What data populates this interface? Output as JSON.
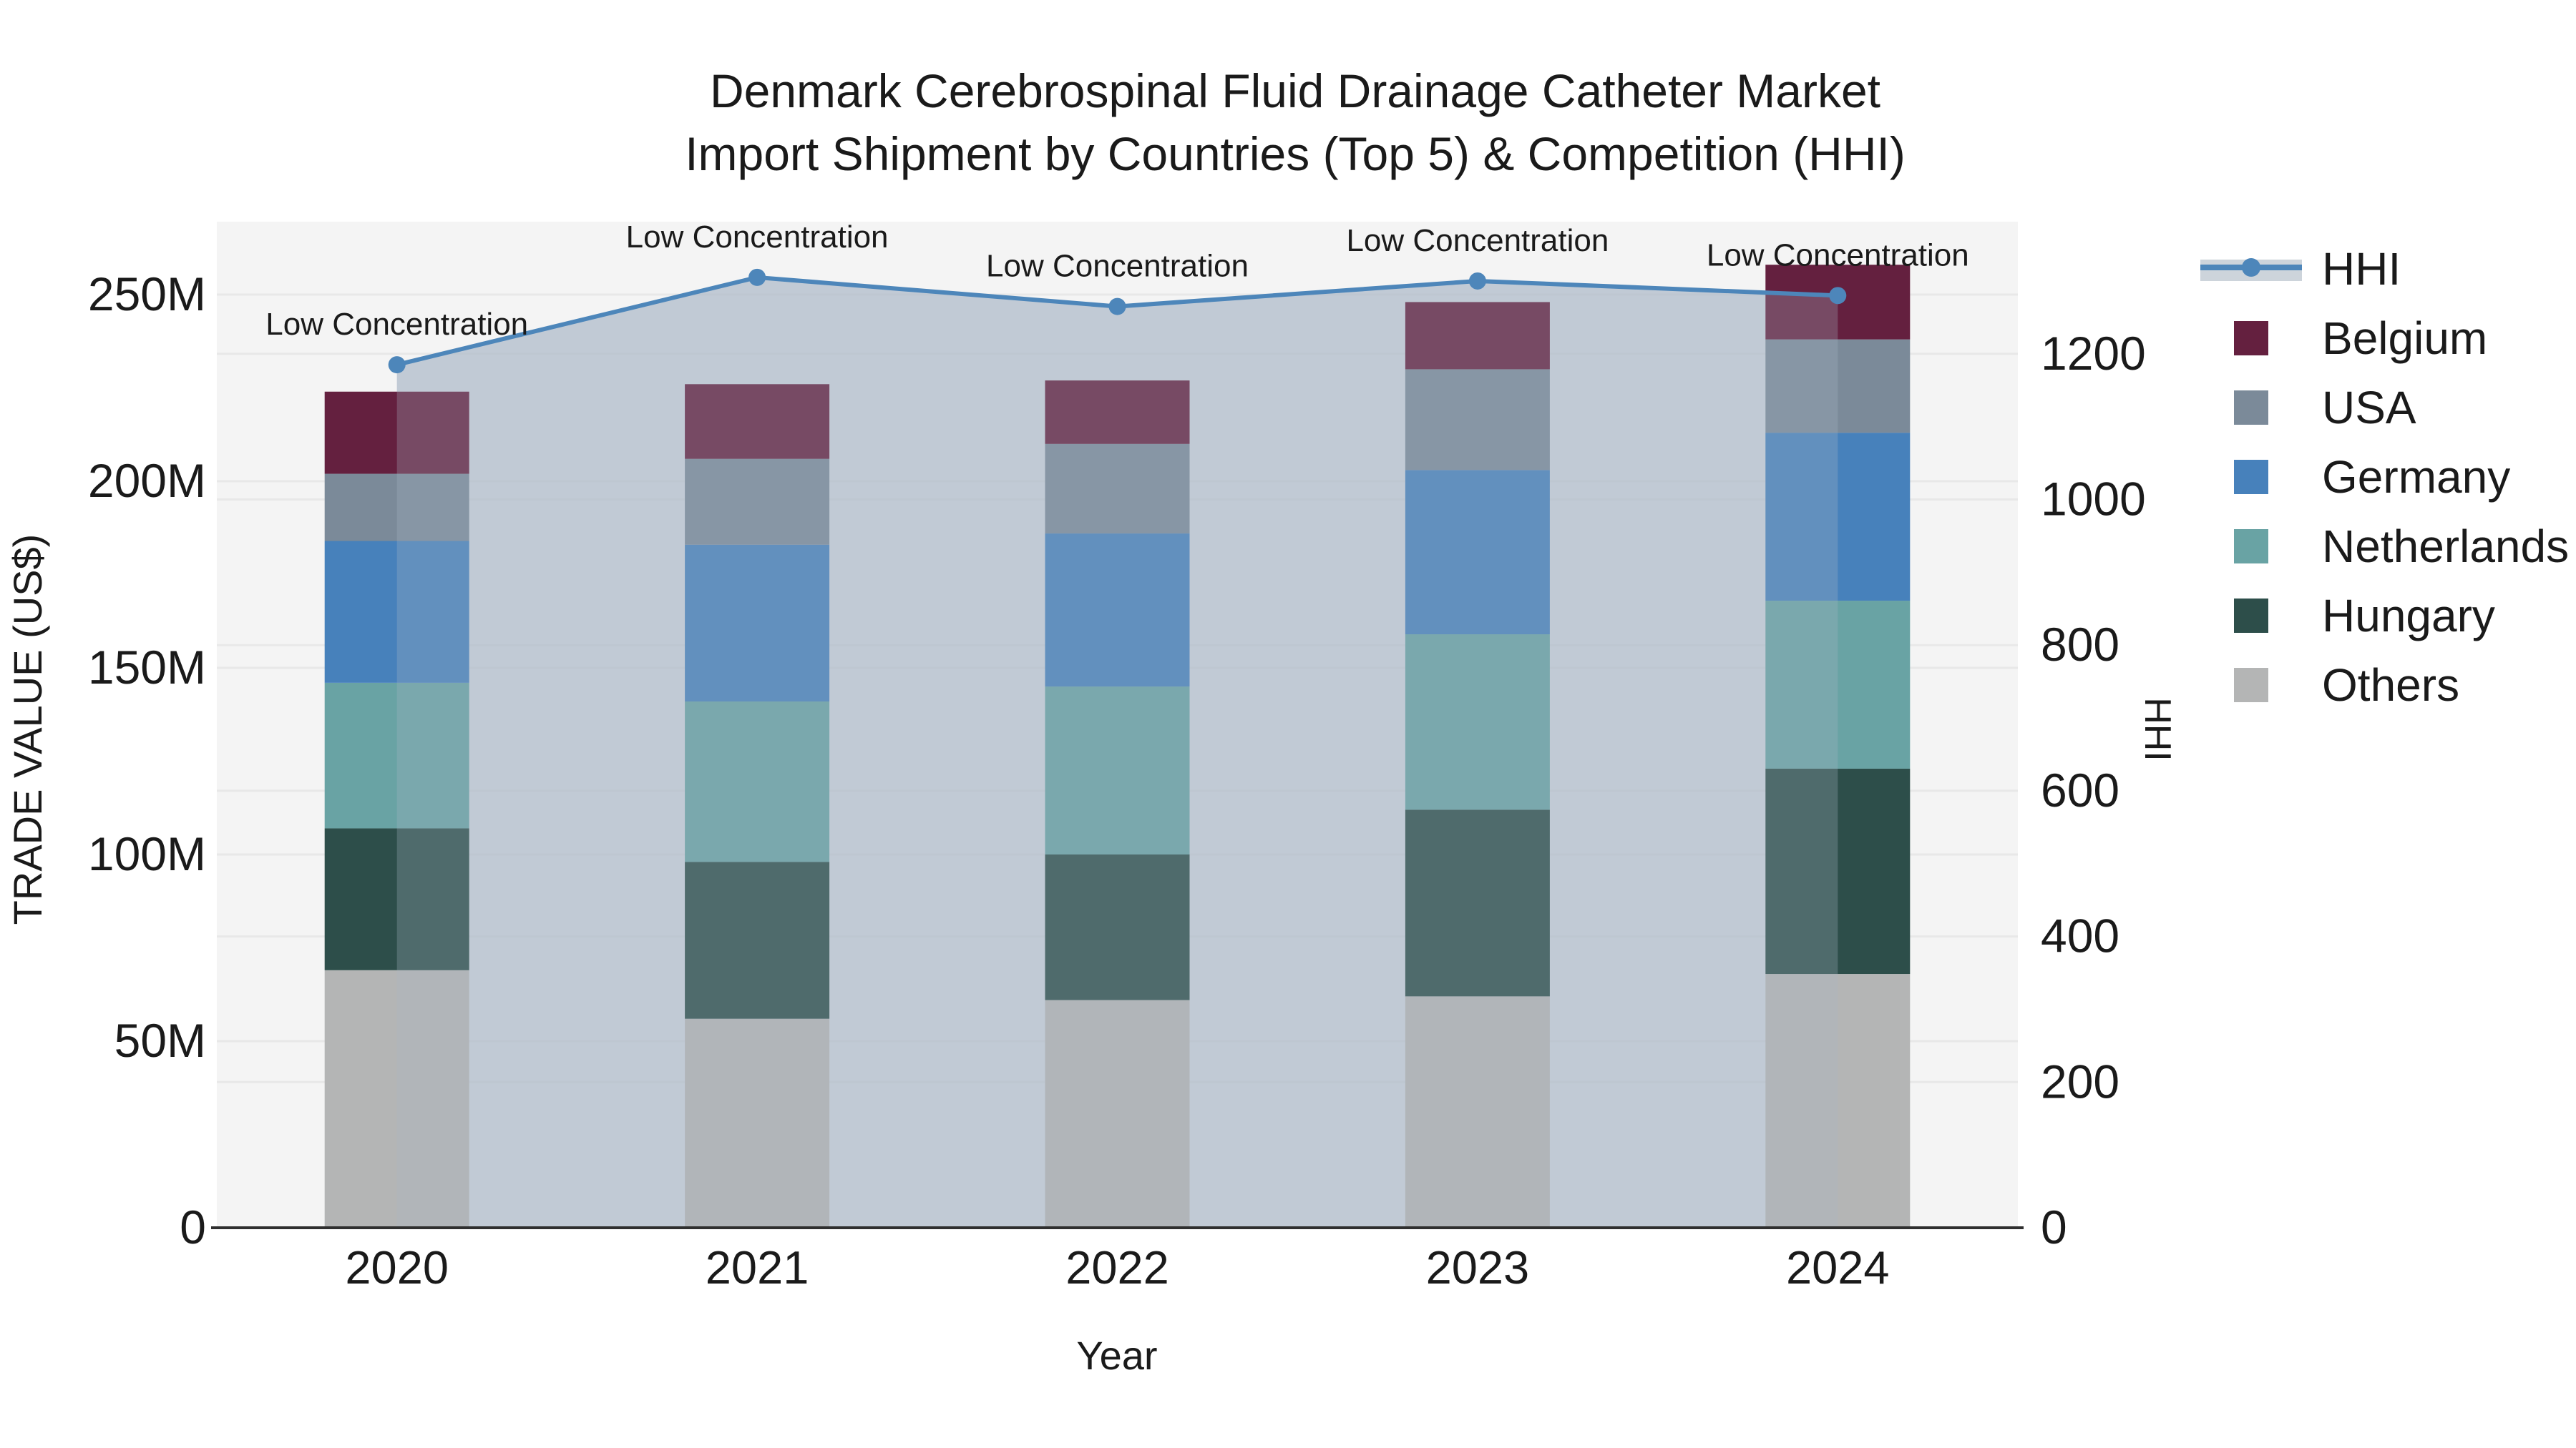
{
  "title": {
    "line1": "Denmark Cerebrospinal Fluid Drainage Catheter Market",
    "line2": "Import Shipment by Countries (Top 5) & Competition (HHI)"
  },
  "axes": {
    "x_label": "Year",
    "y_left_label": "TRADE VALUE (US$)",
    "y_right_label": "HHI",
    "y_left_ticks": [
      {
        "value": 0,
        "label": "0"
      },
      {
        "value": 50,
        "label": "50M"
      },
      {
        "value": 100,
        "label": "100M"
      },
      {
        "value": 150,
        "label": "150M"
      },
      {
        "value": 200,
        "label": "200M"
      },
      {
        "value": 250,
        "label": "250M"
      }
    ],
    "y_right_ticks": [
      {
        "value": 0,
        "label": "0"
      },
      {
        "value": 200,
        "label": "200"
      },
      {
        "value": 400,
        "label": "400"
      },
      {
        "value": 600,
        "label": "600"
      },
      {
        "value": 800,
        "label": "800"
      },
      {
        "value": 1000,
        "label": "1000"
      },
      {
        "value": 1200,
        "label": "1200"
      }
    ]
  },
  "colors": {
    "belgium": "#64203f",
    "usa": "#7b8a99",
    "germany": "#4781bb",
    "netherlands": "#69a3a4",
    "hungary": "#2d4e4a",
    "others": "#b4b5b5",
    "hhi_line": "#4d86ba",
    "area_fill": "#aab7c7",
    "plot_bg": "#f4f4f4",
    "gridline": "#e8e8e8",
    "axis_line": "#2f2f2f",
    "legend_band": "#cdd4db"
  },
  "legend": [
    {
      "label": "HHI",
      "type": "line",
      "color": "#4d86ba"
    },
    {
      "label": "Belgium",
      "type": "square",
      "color": "#64203f"
    },
    {
      "label": "USA",
      "type": "square",
      "color": "#7b8a99"
    },
    {
      "label": "Germany",
      "type": "square",
      "color": "#4781bb"
    },
    {
      "label": "Netherlands",
      "type": "square",
      "color": "#69a3a4"
    },
    {
      "label": "Hungary",
      "type": "square",
      "color": "#2d4e4a"
    },
    {
      "label": "Others",
      "type": "square",
      "color": "#b4b5b5"
    }
  ],
  "chart_data": {
    "type": "bar",
    "subtype": "stacked-bars-with-line-area-overlay",
    "categories": [
      "2020",
      "2021",
      "2022",
      "2023",
      "2024"
    ],
    "bar_unit": "Trade value, millions US$",
    "stack_series_bottom_to_top": [
      {
        "name": "Others",
        "color": "#b4b5b5",
        "values": [
          69,
          56,
          61,
          62,
          68
        ]
      },
      {
        "name": "Hungary",
        "color": "#2d4e4a",
        "values": [
          38,
          42,
          39,
          50,
          55
        ]
      },
      {
        "name": "Netherlands",
        "color": "#69a3a4",
        "values": [
          39,
          43,
          45,
          47,
          45
        ]
      },
      {
        "name": "Germany",
        "color": "#4781bb",
        "values": [
          38,
          42,
          41,
          44,
          45
        ]
      },
      {
        "name": "USA",
        "color": "#7b8a99",
        "values": [
          18,
          23,
          24,
          27,
          25
        ]
      },
      {
        "name": "Belgium",
        "color": "#64203f",
        "values": [
          22,
          20,
          17,
          18,
          20
        ]
      }
    ],
    "bar_totals": [
      224,
      226,
      227,
      248,
      258
    ],
    "line_series": {
      "name": "HHI",
      "axis": "right",
      "values": [
        1185,
        1305,
        1265,
        1300,
        1280
      ],
      "annotations": [
        "Low Concentration",
        "Low Concentration",
        "Low Concentration",
        "Low Concentration",
        "Low Concentration"
      ]
    },
    "y_left_range": [
      0,
      269
    ],
    "y_right_range": [
      0,
      1381
    ],
    "grid": true,
    "legend_position": "right-outside"
  }
}
